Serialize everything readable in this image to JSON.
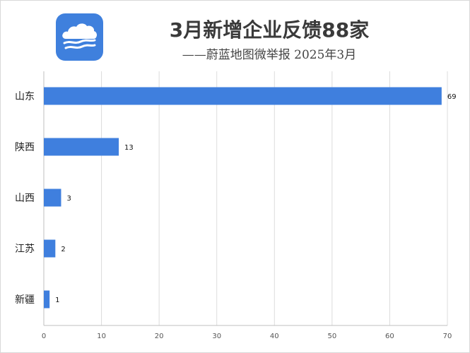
{
  "header": {
    "title": "3月新增企业反馈88家",
    "subtitle": "——蔚蓝地图微举报 2025年3月"
  },
  "logo": {
    "icon": "cloud-waves-icon",
    "color": "#3f80dd"
  },
  "chart_data": {
    "type": "bar",
    "orientation": "horizontal",
    "categories": [
      "山东",
      "陕西",
      "山西",
      "江苏",
      "新疆"
    ],
    "values": [
      69,
      13,
      3,
      2,
      1
    ],
    "xlim": [
      0,
      70
    ],
    "xticks": [
      0,
      10,
      20,
      30,
      40,
      50,
      60,
      70
    ],
    "grid": true,
    "legend": "none",
    "bar_color": "#3f7fde"
  }
}
